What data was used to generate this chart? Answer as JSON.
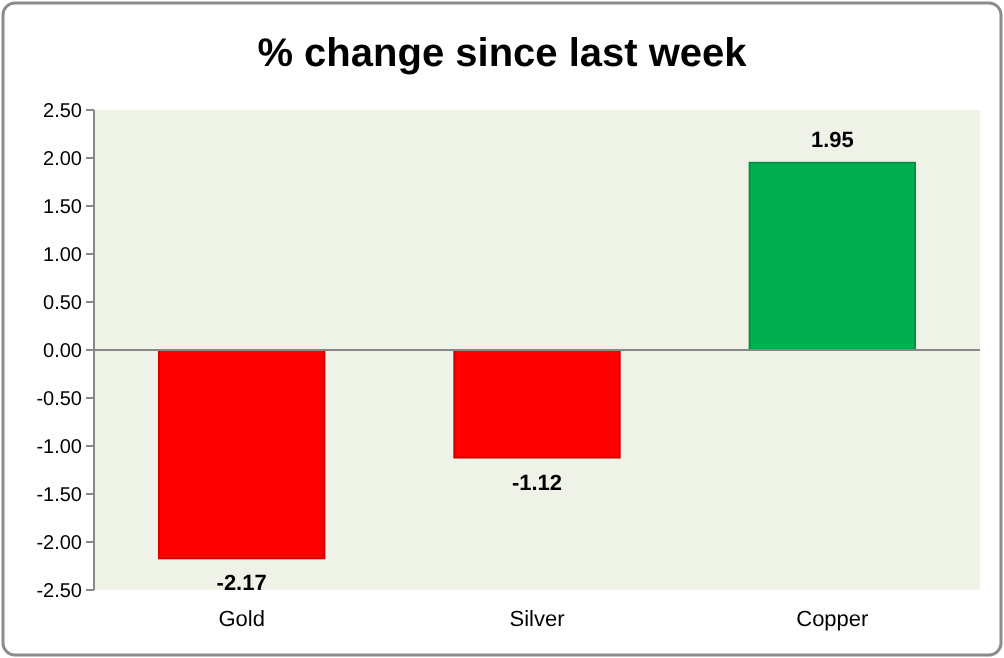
{
  "chart_data": {
    "type": "bar",
    "title": "% change since last week",
    "categories": [
      "Gold",
      "Silver",
      "Copper"
    ],
    "values": [
      -2.17,
      -1.12,
      1.95
    ],
    "colors": [
      "#ff0000",
      "#ff0000",
      "#00b050"
    ],
    "ylim": [
      -2.5,
      2.5
    ],
    "yticks": [
      {
        "value": -2.5,
        "label": "-2.50"
      },
      {
        "value": -2,
        "label": "-2.00"
      },
      {
        "value": -1.5,
        "label": "-1.50"
      },
      {
        "value": -1,
        "label": "-1.00"
      },
      {
        "value": -0.5,
        "label": "-0.50"
      },
      {
        "value": 0,
        "label": "0.00"
      },
      {
        "value": 0.5,
        "label": "0.50"
      },
      {
        "value": 1,
        "label": "1.00"
      },
      {
        "value": 1.5,
        "label": "1.50"
      },
      {
        "value": 2,
        "label": "2.00"
      },
      {
        "value": 2.5,
        "label": "2.50"
      }
    ],
    "data_labels": true
  }
}
